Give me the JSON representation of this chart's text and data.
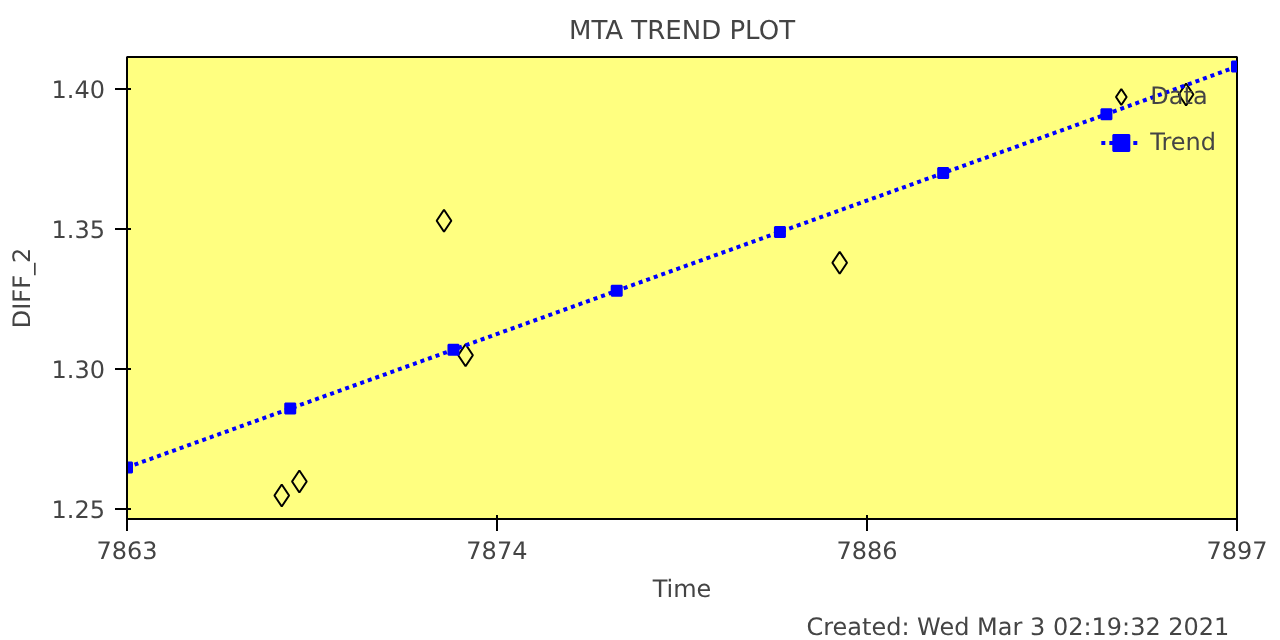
{
  "chart_data": {
    "type": "scatter",
    "title": "MTA TREND PLOT",
    "xlabel": "Time",
    "ylabel": "DIFF_2",
    "annotations": [
      "Created: Wed Mar  3 02:19:32 2021"
    ],
    "series": [
      {
        "name": "Data",
        "marker": "diamond",
        "color": "#000000",
        "x": [
          7867.74,
          7868.28,
          7872.71,
          7873.37,
          7884.83,
          7895.44
        ],
        "values": [
          1.255,
          1.26,
          1.353,
          1.305,
          1.338,
          1.398
        ]
      },
      {
        "name": "Trend",
        "type": "line",
        "marker": "square",
        "line_style": "dotted",
        "color": "#0000ff",
        "x": [
          7863,
          7868,
          7873,
          7878,
          7883,
          7888,
          7893,
          7897
        ],
        "values": [
          1.265,
          1.286,
          1.307,
          1.328,
          1.349,
          1.37,
          1.391,
          1.408
        ]
      }
    ],
    "xlim": [
      7863,
      7897
    ],
    "xticks": [
      7863,
      {
        "value": 7874.33,
        "label": "7874"
      },
      {
        "value": 7885.67,
        "label": "7886"
      },
      7897
    ],
    "ylim": [
      1.2466,
      1.4114
    ],
    "yticks": [
      1.25,
      {
        "value": 1.3,
        "label": "1.30"
      },
      1.35,
      {
        "value": 1.4,
        "label": "1.40"
      }
    ],
    "grid": false,
    "legend": "top right"
  }
}
